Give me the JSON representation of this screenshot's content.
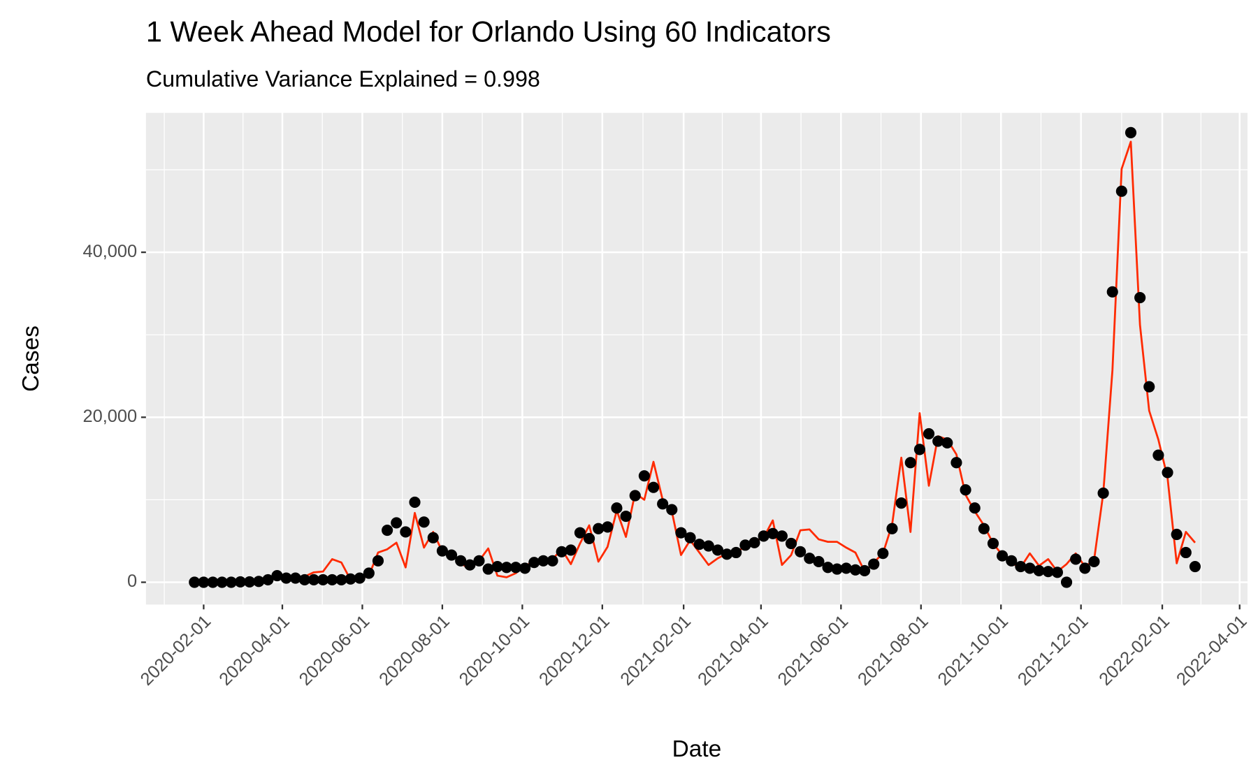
{
  "chart_data": {
    "type": "line",
    "title": "1 Week Ahead Model for Orlando Using 60 Indicators",
    "subtitle": "Cumulative Variance Explained = 0.998",
    "x_label": "Date",
    "y_label": "Cases",
    "x": [
      "2020-01-25",
      "2020-02-01",
      "2020-02-08",
      "2020-02-15",
      "2020-02-22",
      "2020-02-29",
      "2020-03-07",
      "2020-03-14",
      "2020-03-21",
      "2020-03-28",
      "2020-04-04",
      "2020-04-11",
      "2020-04-18",
      "2020-04-25",
      "2020-05-02",
      "2020-05-09",
      "2020-05-16",
      "2020-05-23",
      "2020-05-30",
      "2020-06-06",
      "2020-06-13",
      "2020-06-20",
      "2020-06-27",
      "2020-07-04",
      "2020-07-11",
      "2020-07-18",
      "2020-07-25",
      "2020-08-01",
      "2020-08-08",
      "2020-08-15",
      "2020-08-22",
      "2020-08-29",
      "2020-09-05",
      "2020-09-12",
      "2020-09-19",
      "2020-09-26",
      "2020-10-03",
      "2020-10-10",
      "2020-10-17",
      "2020-10-24",
      "2020-10-31",
      "2020-11-07",
      "2020-11-14",
      "2020-11-21",
      "2020-11-28",
      "2020-12-05",
      "2020-12-12",
      "2020-12-19",
      "2020-12-26",
      "2021-01-02",
      "2021-01-09",
      "2021-01-16",
      "2021-01-23",
      "2021-01-30",
      "2021-02-06",
      "2021-02-13",
      "2021-02-20",
      "2021-02-27",
      "2021-03-06",
      "2021-03-13",
      "2021-03-20",
      "2021-03-27",
      "2021-04-03",
      "2021-04-10",
      "2021-04-17",
      "2021-04-24",
      "2021-05-01",
      "2021-05-08",
      "2021-05-15",
      "2021-05-22",
      "2021-05-29",
      "2021-06-05",
      "2021-06-12",
      "2021-06-19",
      "2021-06-26",
      "2021-07-03",
      "2021-07-10",
      "2021-07-17",
      "2021-07-24",
      "2021-07-31",
      "2021-08-07",
      "2021-08-14",
      "2021-08-21",
      "2021-08-28",
      "2021-09-04",
      "2021-09-11",
      "2021-09-18",
      "2021-09-25",
      "2021-10-02",
      "2021-10-09",
      "2021-10-16",
      "2021-10-23",
      "2021-10-30",
      "2021-11-06",
      "2021-11-13",
      "2021-11-20",
      "2021-11-27",
      "2021-12-04",
      "2021-12-11",
      "2021-12-18",
      "2021-12-25",
      "2022-01-01",
      "2022-01-08",
      "2022-01-15",
      "2022-01-22",
      "2022-01-29",
      "2022-02-05",
      "2022-02-12",
      "2022-02-19",
      "2022-02-26"
    ],
    "series": [
      {
        "type": "line",
        "color": "#ff2a00",
        "values": [
          0,
          0,
          0,
          0,
          0,
          0,
          0,
          100,
          300,
          700,
          800,
          600,
          700,
          1200,
          1300,
          2800,
          2400,
          300,
          400,
          800,
          3600,
          4000,
          4800,
          1800,
          8400,
          4200,
          6100,
          3700,
          3700,
          2300,
          1600,
          2600,
          4100,
          800,
          600,
          1100,
          2000,
          2500,
          2600,
          2800,
          4000,
          2200,
          4700,
          6900,
          2500,
          4300,
          8700,
          5500,
          10800,
          10000,
          14600,
          10000,
          8600,
          3300,
          5100,
          3600,
          2100,
          2900,
          3500,
          3800,
          4200,
          5000,
          5400,
          7500,
          2100,
          3300,
          6300,
          6400,
          5200,
          4900,
          4900,
          4200,
          3600,
          1300,
          2400,
          3500,
          7000,
          15100,
          6100,
          20500,
          11700,
          17700,
          17300,
          15500,
          10600,
          8600,
          6900,
          4700,
          3300,
          2300,
          1800,
          3500,
          2000,
          2800,
          1300,
          2200,
          3500,
          1900,
          2700,
          10800,
          25700,
          50100,
          53400,
          31200,
          20800,
          17300,
          12700,
          2300,
          6100,
          4800
        ]
      },
      {
        "type": "scatter",
        "color": "#000000",
        "values": [
          0,
          0,
          0,
          0,
          0,
          50,
          50,
          100,
          300,
          800,
          500,
          500,
          300,
          300,
          300,
          300,
          300,
          400,
          500,
          1100,
          2600,
          6300,
          7200,
          6100,
          9700,
          7300,
          5400,
          3800,
          3300,
          2600,
          2100,
          2600,
          1600,
          1900,
          1800,
          1800,
          1700,
          2400,
          2600,
          2600,
          3700,
          3900,
          6000,
          5300,
          6500,
          6700,
          9000,
          8000,
          10500,
          12900,
          11500,
          9500,
          8800,
          6000,
          5400,
          4600,
          4400,
          3900,
          3400,
          3600,
          4500,
          4800,
          5600,
          5900,
          5600,
          4700,
          3700,
          2900,
          2500,
          1800,
          1600,
          1700,
          1500,
          1400,
          2200,
          3500,
          6500,
          9600,
          14500,
          16100,
          18000,
          17100,
          16900,
          14500,
          11200,
          9000,
          6500,
          4700,
          3200,
          2600,
          1900,
          1700,
          1400,
          1300,
          1200,
          0,
          2800,
          1700,
          2500,
          10800,
          35200,
          47400,
          54500,
          34500,
          23700,
          15400,
          13300,
          5800,
          3600,
          1900
        ]
      }
    ],
    "xlim": [
      "2019-12-19",
      "2022-04-07"
    ],
    "xticks": [
      "2020-02-01",
      "2020-04-01",
      "2020-06-01",
      "2020-08-01",
      "2020-10-01",
      "2020-12-01",
      "2021-02-01",
      "2021-04-01",
      "2021-06-01",
      "2021-08-01",
      "2021-10-01",
      "2021-12-01",
      "2022-02-01",
      "2022-04-01"
    ],
    "ylim": [
      -2700,
      56900
    ],
    "yticks": [
      0,
      {
        "value": 20000,
        "label": "20,000"
      },
      {
        "value": 40000,
        "label": "40,000"
      }
    ],
    "grid": true
  }
}
